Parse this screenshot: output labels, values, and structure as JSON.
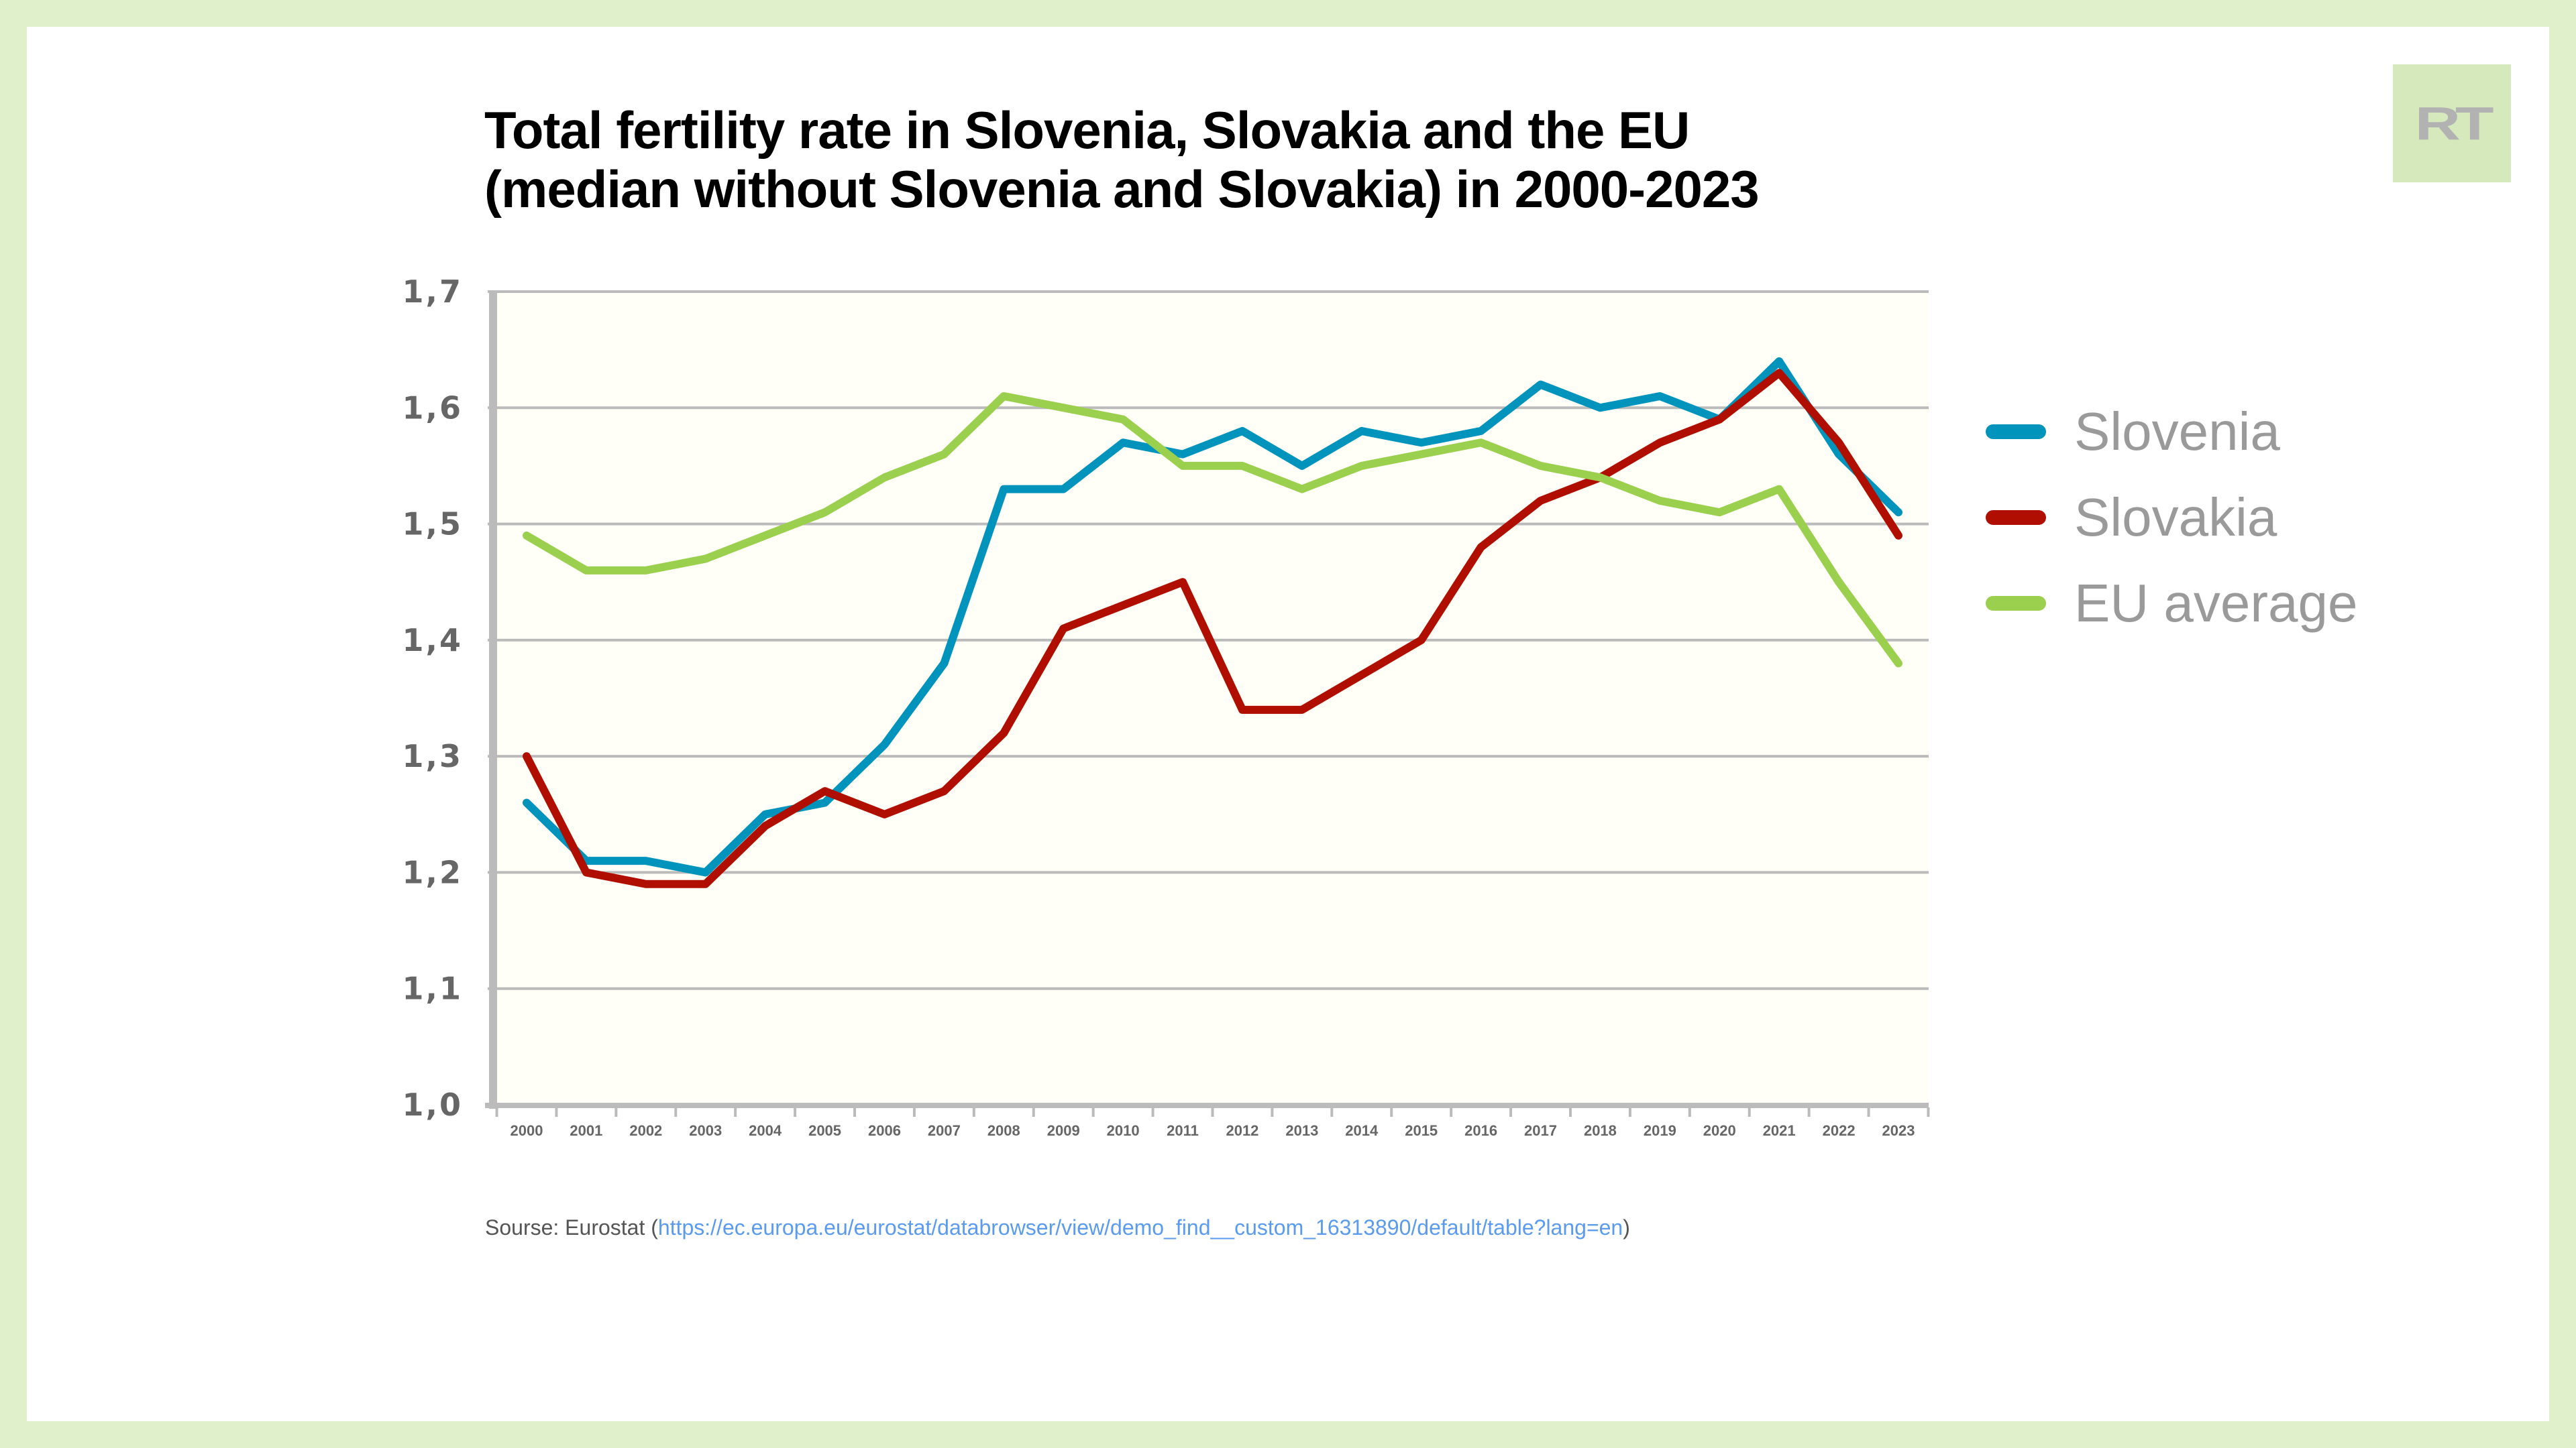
{
  "title_line1": "Total fertility rate in Slovenia, Slovakia and the EU",
  "title_line2": "(median without Slovenia and Slovakia) in 2000-2023",
  "logo_text": "RT",
  "source": {
    "prefix": "Sourse: Eurostat (",
    "link": "https://ec.europa.eu/eurostat/databrowser/view/demo_find__custom_16313890/default/table?lang=en",
    "suffix": ")"
  },
  "colors": {
    "page_background": "#dff0cb",
    "plot_background": "#fffef7",
    "grid": "#bbbbbb",
    "slovenia": "#0093bb",
    "slovakia": "#b00f00",
    "eu": "#9bd04e"
  },
  "chart_data": {
    "type": "line",
    "title": "Total fertility rate in Slovenia, Slovakia and the EU (median without Slovenia and Slovakia) in 2000-2023",
    "xlabel": "",
    "ylabel": "",
    "ylim": [
      1.0,
      1.7
    ],
    "yticks": [
      "1,0",
      "1,1",
      "1,2",
      "1,3",
      "1,4",
      "1,5",
      "1,6",
      "1,7"
    ],
    "ytick_values": [
      1.0,
      1.1,
      1.2,
      1.3,
      1.4,
      1.5,
      1.6,
      1.7
    ],
    "grid": true,
    "legend_position": "right",
    "x": [
      "2000",
      "2001",
      "2002",
      "2003",
      "2004",
      "2005",
      "2006",
      "2007",
      "2008",
      "2009",
      "2010",
      "2011",
      "2012",
      "2013",
      "2014",
      "2015",
      "2016",
      "2017",
      "2018",
      "2019",
      "2020",
      "2021",
      "2022",
      "2023"
    ],
    "series": [
      {
        "name": "Slovenia",
        "color": "#0093bb",
        "values": [
          1.26,
          1.21,
          1.21,
          1.2,
          1.25,
          1.26,
          1.31,
          1.38,
          1.53,
          1.53,
          1.57,
          1.56,
          1.58,
          1.55,
          1.58,
          1.57,
          1.58,
          1.62,
          1.6,
          1.61,
          1.59,
          1.64,
          1.56,
          1.51
        ]
      },
      {
        "name": "Slovakia",
        "color": "#b00f00",
        "values": [
          1.3,
          1.2,
          1.19,
          1.19,
          1.24,
          1.27,
          1.25,
          1.27,
          1.32,
          1.41,
          1.43,
          1.45,
          1.34,
          1.34,
          1.37,
          1.4,
          1.48,
          1.52,
          1.54,
          1.57,
          1.59,
          1.63,
          1.57,
          1.49
        ]
      },
      {
        "name": "EU average",
        "color": "#9bd04e",
        "values": [
          1.49,
          1.46,
          1.46,
          1.47,
          1.49,
          1.51,
          1.54,
          1.56,
          1.61,
          1.6,
          1.59,
          1.55,
          1.55,
          1.53,
          1.55,
          1.56,
          1.57,
          1.55,
          1.54,
          1.52,
          1.51,
          1.53,
          1.45,
          1.38
        ]
      }
    ]
  }
}
